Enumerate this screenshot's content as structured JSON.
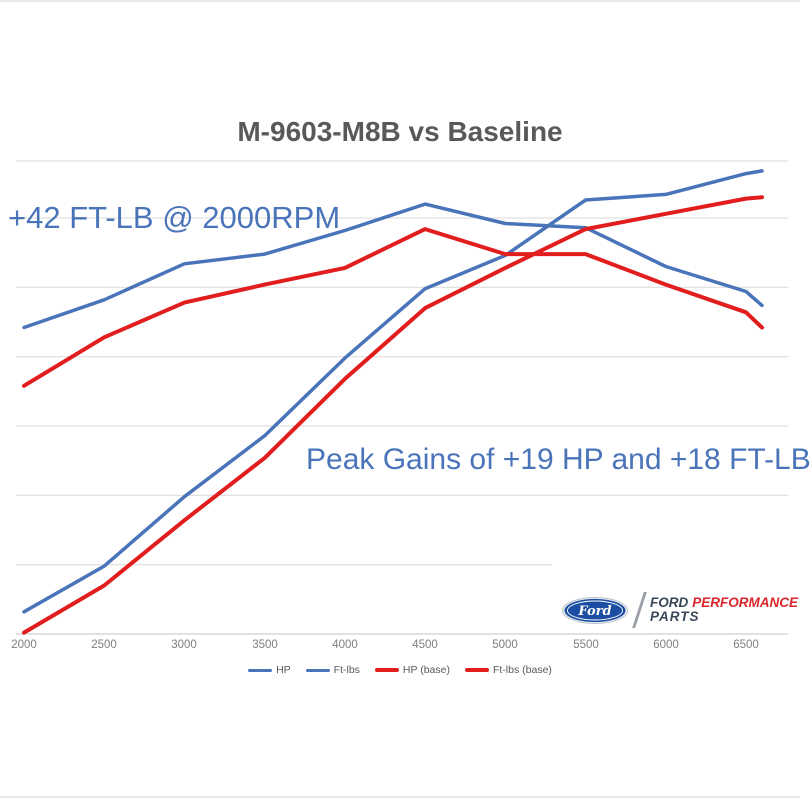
{
  "page": {
    "title": "M-9603-M8B vs Baseline"
  },
  "annotations": {
    "low_end": "+42 FT-LB @ 2000RPM",
    "peak": "Peak Gains of +19 HP and +18 FT-LB"
  },
  "chart_data": {
    "type": "line",
    "title": "M-9603-M8B vs Baseline",
    "x": [
      2000,
      2500,
      3000,
      3500,
      4000,
      4500,
      5000,
      5500,
      6000,
      6500,
      6600
    ],
    "x_ticks": [
      "2000",
      "2500",
      "3000",
      "3500",
      "4000",
      "4500",
      "5000",
      "5500",
      "6000",
      "6500"
    ],
    "series": [
      {
        "name": "HP",
        "color": "#4a74b9",
        "values": [
          16,
          49,
          99,
          143,
          199,
          249,
          273,
          313,
          317,
          332,
          334
        ]
      },
      {
        "name": "Ft-lbs",
        "color": "#4a74b9",
        "values": [
          221,
          241,
          267,
          274,
          291,
          310,
          296,
          293,
          265,
          247,
          237
        ]
      },
      {
        "name": "HP (base)",
        "color": "#e11d1d",
        "values": [
          1,
          35,
          82,
          127,
          184,
          235,
          264,
          292,
          303,
          314,
          315
        ]
      },
      {
        "name": "Ft-lbs (base)",
        "color": "#e11d1d",
        "values": [
          179,
          214,
          239,
          252,
          264,
          292,
          274,
          274,
          252,
          232,
          221
        ]
      }
    ],
    "xlabel": "",
    "ylabel": "",
    "ylim": [
      0,
      350
    ],
    "gridline_interval": 50,
    "y_axis_tick_labels_visible": false,
    "grid": "horizontal",
    "legend_position": "bottom"
  },
  "logo": {
    "oval_text": "Ford",
    "brand_word": "FORD",
    "performance_word": "PERFORMANCE",
    "parts_word": "PARTS"
  },
  "colors": {
    "line_blue": "#4a74b9",
    "line_red": "#e11d1d",
    "title_gray": "#595959",
    "tick_gray": "#7f7f7f",
    "grid_gray": "#d9d9d9",
    "axis_gray": "#cfcfcf",
    "ford_oval_blue": "#1b4ea3",
    "ford_dark": "#39475a",
    "ford_red": "#d9252b"
  }
}
